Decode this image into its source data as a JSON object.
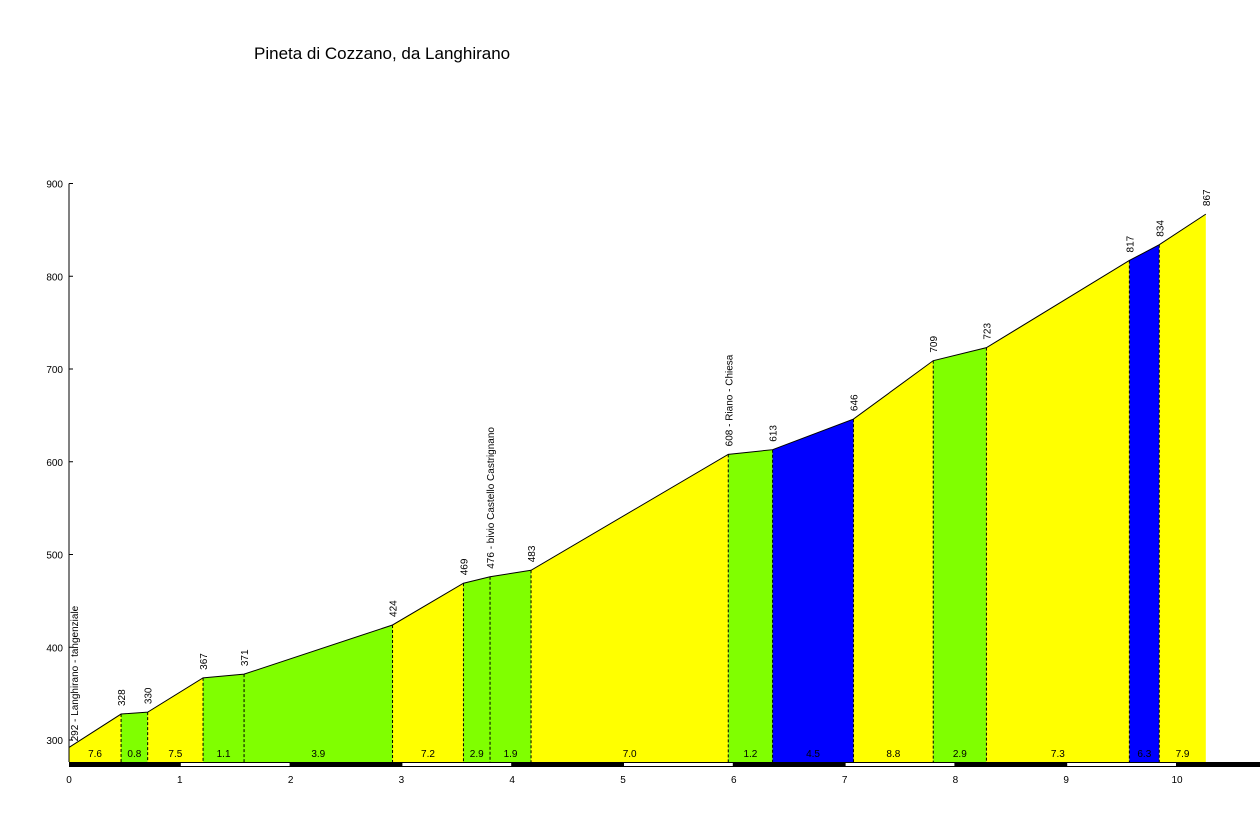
{
  "chart_data": {
    "type": "area",
    "title": "Pineta di Cozzano, da Langhirano",
    "xlabel": "",
    "ylabel": "",
    "xlim": [
      0,
      10.7
    ],
    "ylim": [
      275,
      900
    ],
    "x_ticks": [
      0,
      1,
      2,
      3,
      4,
      5,
      6,
      7,
      8,
      9,
      10
    ],
    "y_ticks": [
      300,
      400,
      500,
      600,
      700,
      800,
      900
    ],
    "grid": false,
    "legend": "none",
    "colors": {
      "low": "#ffff00",
      "mid": "#80ff00",
      "high": "#0000ff"
    },
    "points": [
      {
        "x": 0.0,
        "y": 292,
        "label": "292 - Langhirano - tangenziale"
      },
      {
        "x": 0.47,
        "y": 328,
        "label": "328"
      },
      {
        "x": 0.71,
        "y": 330,
        "label": "330"
      },
      {
        "x": 1.21,
        "y": 367,
        "label": "367"
      },
      {
        "x": 1.58,
        "y": 371,
        "label": "371"
      },
      {
        "x": 2.92,
        "y": 424,
        "label": "424"
      },
      {
        "x": 3.56,
        "y": 469,
        "label": "469"
      },
      {
        "x": 3.8,
        "y": 476,
        "label": "476 - bivio Castello Castrignano"
      },
      {
        "x": 4.17,
        "y": 483,
        "label": "483"
      },
      {
        "x": 5.95,
        "y": 608,
        "label": "608 - Riano - Chiesa"
      },
      {
        "x": 6.35,
        "y": 613,
        "label": "613"
      },
      {
        "x": 7.08,
        "y": 646,
        "label": "646"
      },
      {
        "x": 7.8,
        "y": 709,
        "label": "709"
      },
      {
        "x": 8.28,
        "y": 723,
        "label": "723"
      },
      {
        "x": 9.57,
        "y": 817,
        "label": "817"
      },
      {
        "x": 9.84,
        "y": 834,
        "label": "834"
      },
      {
        "x": 10.26,
        "y": 867,
        "label": "867"
      }
    ],
    "segments": [
      {
        "gradient": "7.6",
        "class": "low"
      },
      {
        "gradient": "0.8",
        "class": "mid"
      },
      {
        "gradient": "7.5",
        "class": "low"
      },
      {
        "gradient": "1.1",
        "class": "mid"
      },
      {
        "gradient": "3.9",
        "class": "mid"
      },
      {
        "gradient": "7.2",
        "class": "low"
      },
      {
        "gradient": "2.9",
        "class": "mid"
      },
      {
        "gradient": "1.9",
        "class": "mid"
      },
      {
        "gradient": "7.0",
        "class": "low"
      },
      {
        "gradient": "1.2",
        "class": "mid"
      },
      {
        "gradient": "4.5",
        "class": "high"
      },
      {
        "gradient": "8.8",
        "class": "low"
      },
      {
        "gradient": "2.9",
        "class": "mid"
      },
      {
        "gradient": "7.3",
        "class": "low"
      },
      {
        "gradient": "6.3",
        "class": "high"
      },
      {
        "gradient": "7.9",
        "class": "low"
      }
    ]
  }
}
